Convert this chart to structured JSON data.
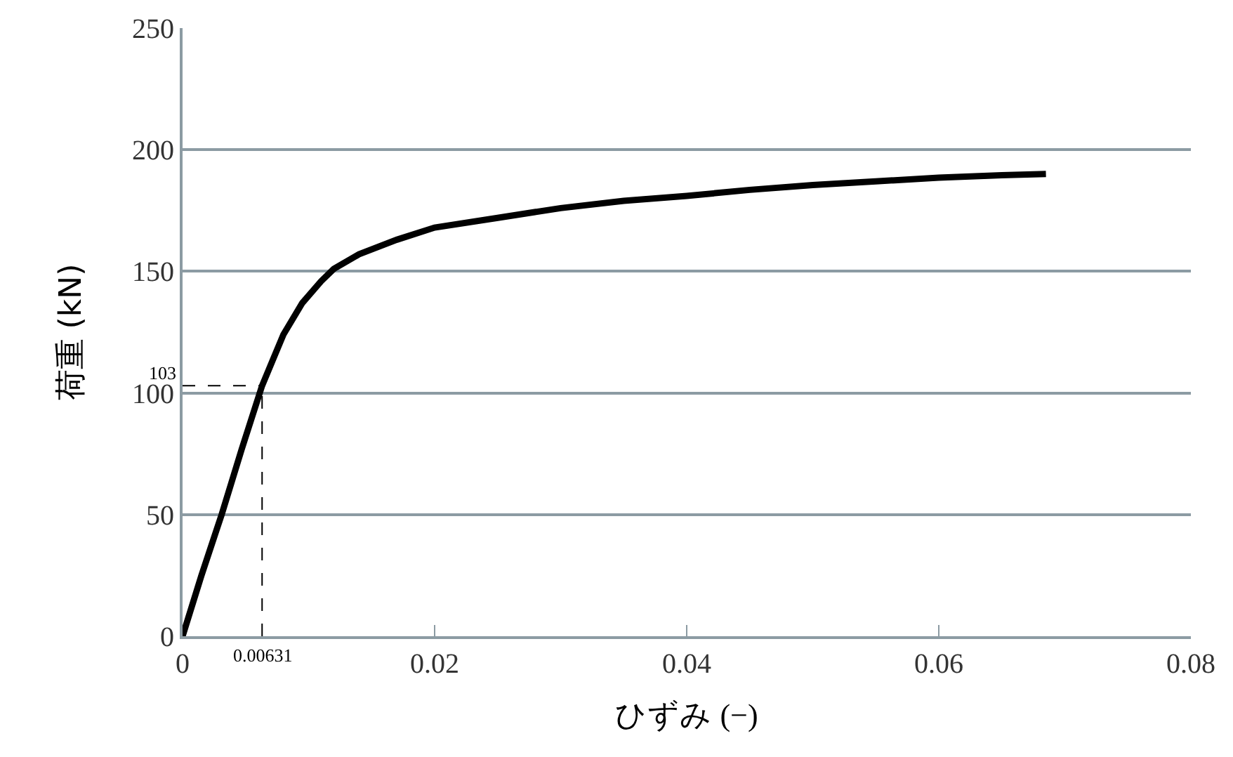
{
  "chart_data": {
    "type": "line",
    "xlabel": "ひずみ (−)",
    "ylabel": "荷重 (kN)",
    "x": [
      0,
      0.0015,
      0.0031,
      0.0047,
      0.00631,
      0.008,
      0.0095,
      0.011,
      0.012,
      0.014,
      0.017,
      0.02,
      0.025,
      0.03,
      0.035,
      0.04,
      0.045,
      0.05,
      0.055,
      0.06,
      0.065,
      0.0685
    ],
    "series": [
      {
        "color": "#000000",
        "values": [
          0,
          25,
          50,
          77,
          103,
          124,
          137,
          146,
          151,
          157,
          163,
          168,
          172,
          176,
          179,
          181,
          183.5,
          185.5,
          187,
          188.5,
          189.5,
          190
        ]
      }
    ],
    "xlim": [
      0,
      0.08
    ],
    "xticks": [
      0,
      0.02,
      0.04,
      0.06,
      0.08
    ],
    "ylim": [
      0,
      250
    ],
    "yticks": [
      0,
      50,
      100,
      150,
      200,
      250
    ],
    "grid": "y",
    "marker": "none",
    "line_style": "solid",
    "ref_lines": [
      {
        "axis": "x",
        "value": 0.00631,
        "label": "0.00631",
        "color": "#000000",
        "line_style": "dashed"
      },
      {
        "axis": "y",
        "value": 103,
        "label": "103",
        "color": "#000000",
        "line_style": "dashed"
      }
    ]
  }
}
